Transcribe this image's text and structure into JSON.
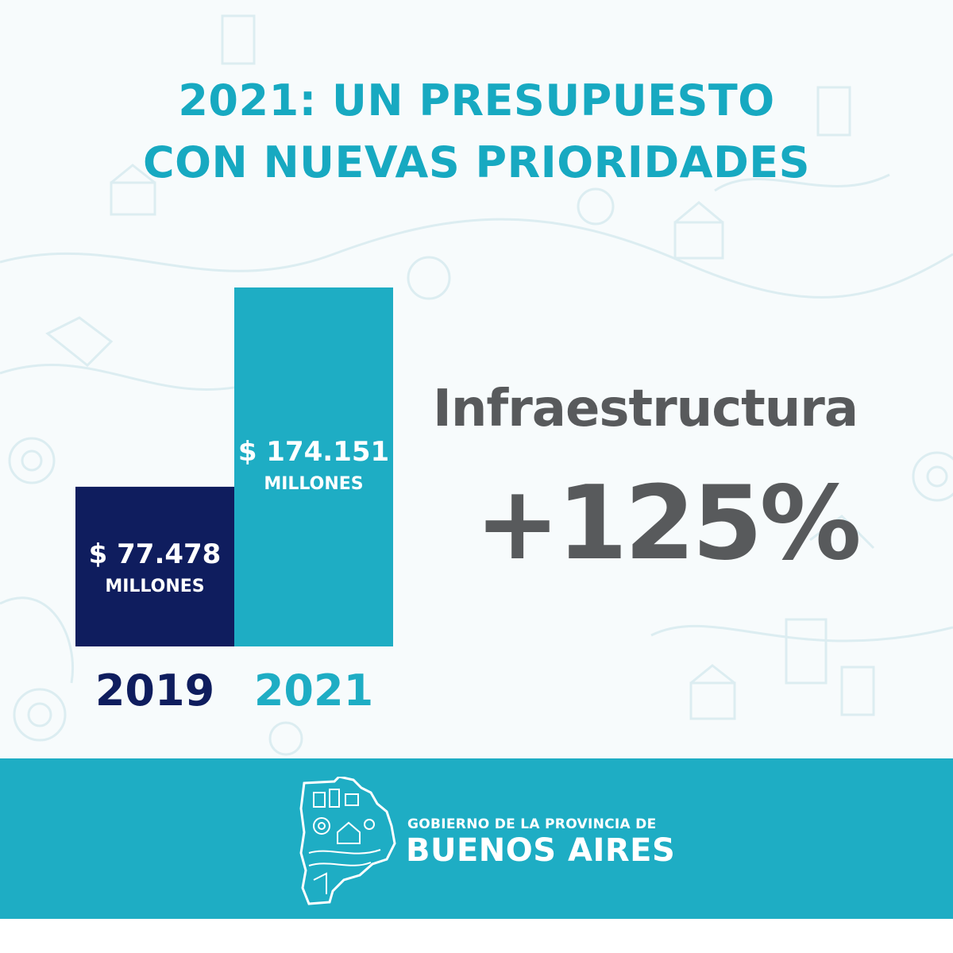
{
  "header": {
    "title_line1": "2021: UN PRESUPUESTO",
    "title_line2": "CON NUEVAS PRIORIDADES"
  },
  "highlight": {
    "sector": "Infraestructura",
    "change": "+125%"
  },
  "footer": {
    "org_line1": "GOBIERNO DE LA PROVINCIA DE",
    "org_line2": "BUENOS AIRES"
  },
  "colors": {
    "accent": "#1eadc4",
    "dark_navy": "#0f1d5e",
    "text_gray": "#585a5c",
    "background": "#f7fbfc"
  },
  "chart_data": {
    "type": "bar",
    "title": "",
    "xlabel": "",
    "ylabel": "",
    "categories": [
      "2019",
      "2021"
    ],
    "values": [
      77478,
      174151
    ],
    "value_labels": [
      "$ 77.478",
      "$ 174.151"
    ],
    "unit_label": "MILLONES",
    "bar_colors": [
      "#0f1d5e",
      "#1eadc4"
    ],
    "category_label_colors": [
      "#0f1d5e",
      "#1eadc4"
    ],
    "ylim": [
      0,
      174151
    ],
    "grid": false,
    "legend": "none"
  }
}
